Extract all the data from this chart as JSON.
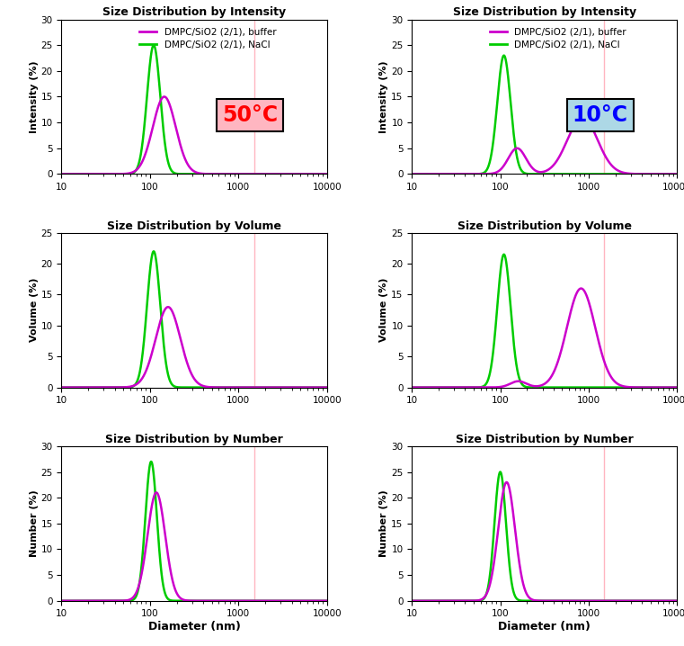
{
  "title_intensity": "Size Distribution by Intensity",
  "title_volume": "Size Distribution by Volume",
  "title_number": "Size Distribution by Number",
  "legend_buffer": "DMPC/SiO2 (2/1), buffer",
  "legend_nacl": "DMPC/SiO2 (2/1), NaCl",
  "color_buffer": "#cc00cc",
  "color_nacl": "#00cc00",
  "label_intensity": "Intensity (%)",
  "label_volume": "Volume (%)",
  "label_number": "Number (%)",
  "label_diameter": "Diameter (nm)",
  "temp_50": "50°C",
  "temp_10": "10°C",
  "temp_50_color": "#ff0000",
  "temp_10_color": "#0000ff",
  "temp_50_bg": "#ffb6c1",
  "temp_10_bg": "#add8e6",
  "vline_x": 1500,
  "vline_color": "#ffb6c1",
  "xlim": [
    10,
    10000
  ],
  "ylim_intensity": [
    0,
    30
  ],
  "ylim_volume": [
    0,
    25
  ],
  "ylim_number": [
    0,
    30
  ],
  "yticks_intensity": [
    0,
    5,
    10,
    15,
    20,
    25,
    30
  ],
  "yticks_volume": [
    0,
    5,
    10,
    15,
    20,
    25
  ],
  "yticks_number": [
    0,
    5,
    10,
    15,
    20,
    25,
    30
  ]
}
